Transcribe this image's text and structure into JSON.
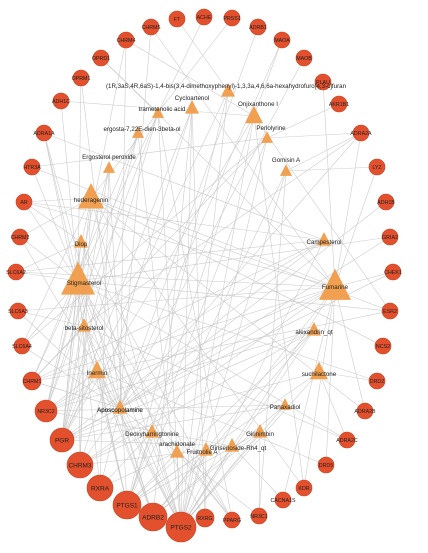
{
  "network": {
    "colors": {
      "target": "#e2502d",
      "target_stroke": "#c9401f",
      "compound": "#f0a050",
      "edge": "#c8c8c8",
      "label": "#222222"
    },
    "targets": [
      "FT",
      "ACHE",
      "PRSS1",
      "CHRM5",
      "CHRM4",
      "ADRB1",
      "OPRD1",
      "MAOA",
      "MAOB",
      "OPRM1",
      "PLAU",
      "ADH1C",
      "AKR1B1",
      "ADRA1A",
      "ADRA2A",
      "HTR3A",
      "LYZ",
      "AR",
      "ADH1B",
      "CHRM2",
      "GRIA2",
      "SLC6A2",
      "CHEK1",
      "SLC6A3",
      "ESR2",
      "SLC6A4",
      "NCS2",
      "CHRM1",
      "DRD2",
      "NR3C2",
      "ADRA2B",
      "PGR",
      "ADRA2C",
      "CHRM3",
      "DRD5",
      "RXRA",
      "KDR",
      "PTGS1",
      "ADRB2",
      "PTGS2",
      "RXRG",
      "PPARG",
      "NR3C1",
      "CACNA1S"
    ],
    "compounds": [
      "(1R,3aS,4R,6aS)-1,4-bis(3,4-dimethoxyphenyl)-1,3,3a,4,6,6a-hexahydrofuro[4,3-c]furan",
      "Cycloartenol",
      "trametenolic acid",
      "Onjixanthone I",
      "ergosta-7,22E-dien-3beta-ol",
      "Perlolyrine",
      "Ergosterol peroxide",
      "Gomisin A",
      "hederagenin",
      "Aposcopolamine",
      "Diop",
      "Campesterol",
      "Stigmasterol",
      "Fumarine",
      "beta-sitosterol",
      "alexandrin_qt",
      "Inermin",
      "suchilactone",
      "Aposcopolamine",
      "Panaxadiol",
      "Deoxyharringtonine",
      "Girinimbin",
      "arachidonate",
      "Fruitnolie A",
      "Ginsenoside-Rh4_qt"
    ],
    "edges": [
      [
        "Stigmasterol",
        "CHRM1"
      ],
      [
        "Stigmasterol",
        "CHRM3"
      ],
      [
        "Stigmasterol",
        "PGR"
      ],
      [
        "Stigmasterol",
        "NR3C2"
      ],
      [
        "Stigmasterol",
        "RXRA"
      ],
      [
        "Stigmasterol",
        "PTGS1"
      ],
      [
        "Stigmasterol",
        "PTGS2"
      ],
      [
        "Stigmasterol",
        "ADRB2"
      ],
      [
        "Stigmasterol",
        "AR"
      ],
      [
        "Stigmasterol",
        "SLC6A2"
      ],
      [
        "Stigmasterol",
        "SLC6A4"
      ],
      [
        "Stigmasterol",
        "ADRA2C"
      ],
      [
        "Stigmasterol",
        "PPARG"
      ],
      [
        "Stigmasterol",
        "ADRA1A"
      ],
      [
        "Stigmasterol",
        "CHRM2"
      ],
      [
        "Stigmasterol",
        "OPRM1"
      ],
      [
        "Stigmasterol",
        "ADH1C"
      ],
      [
        "Stigmasterol",
        "HTR3A"
      ],
      [
        "Stigmasterol",
        "GRIA2"
      ],
      [
        "Stigmasterol",
        "ESR2"
      ],
      [
        "Stigmasterol",
        "DRD2"
      ],
      [
        "Stigmasterol",
        "RXRG"
      ],
      [
        "Stigmasterol",
        "CHRM4"
      ],
      [
        "Stigmasterol",
        "ACHE"
      ],
      [
        "Fumarine",
        "CHRM1"
      ],
      [
        "Fumarine",
        "CHRM3"
      ],
      [
        "Fumarine",
        "PGR"
      ],
      [
        "Fumarine",
        "ADRB2"
      ],
      [
        "Fumarine",
        "PTGS2"
      ],
      [
        "Fumarine",
        "SLC6A3"
      ],
      [
        "Fumarine",
        "ADRA2A"
      ],
      [
        "Fumarine",
        "DRD5"
      ],
      [
        "Fumarine",
        "OPRD1"
      ],
      [
        "Fumarine",
        "CHEK1"
      ],
      [
        "Fumarine",
        "ADRA2B"
      ],
      [
        "Fumarine",
        "AR"
      ],
      [
        "Fumarine",
        "SLC6A2"
      ],
      [
        "Fumarine",
        "CHRM5"
      ],
      [
        "Fumarine",
        "NR3C2"
      ],
      [
        "Fumarine",
        "KDR"
      ],
      [
        "Fumarine",
        "PLAU"
      ],
      [
        "Fumarine",
        "HTR3A"
      ],
      [
        "Fumarine",
        "LYZ"
      ],
      [
        "Fumarine",
        "CACNA1S"
      ],
      [
        "Aposcopolamine",
        "CHRM1"
      ],
      [
        "Aposcopolamine",
        "CHRM2"
      ],
      [
        "Aposcopolamine",
        "CHRM3"
      ],
      [
        "Aposcopolamine",
        "CHRM4"
      ],
      [
        "Aposcopolamine",
        "CHRM5"
      ],
      [
        "Aposcopolamine",
        "ADRB1"
      ],
      [
        "Aposcopolamine",
        "ADRB2"
      ],
      [
        "Aposcopolamine",
        "ADRA1A"
      ],
      [
        "Aposcopolamine",
        "ADH1B"
      ],
      [
        "Aposcopolamine",
        "ADRA2A"
      ],
      [
        "Aposcopolamine",
        "MAOB"
      ],
      [
        "Aposcopolamine",
        "SLC6A4"
      ],
      [
        "Aposcopolamine",
        "SLC6A3"
      ],
      [
        "Aposcopolamine",
        "OPRM1"
      ],
      [
        "Aposcopolamine",
        "GRIA2"
      ],
      [
        "Aposcopolamine",
        "RXRA"
      ],
      [
        "Aposcopolamine",
        "PTGS2"
      ],
      [
        "Aposcopolamine",
        "NR3C1"
      ],
      [
        "Aposcopolamine",
        "CHEK1"
      ],
      [
        "Aposcopolamine",
        "PGR"
      ],
      [
        "Aposcopolamine",
        "MAOA"
      ],
      [
        "hederagenin",
        "PGR"
      ],
      [
        "hederagenin",
        "NR3C2"
      ],
      [
        "hederagenin",
        "PTGS2"
      ],
      [
        "hederagenin",
        "AR"
      ],
      [
        "hederagenin",
        "SLC6A4"
      ],
      [
        "hederagenin",
        "CHRM2"
      ],
      [
        "hederagenin",
        "ESR2"
      ],
      [
        "hederagenin",
        "KDR"
      ],
      [
        "hederagenin",
        "PRSS1"
      ],
      [
        "hederagenin",
        "CHRM3"
      ],
      [
        "hederagenin",
        "ADRA2B"
      ],
      [
        "hederagenin",
        "NCS2"
      ],
      [
        "beta-sitosterol",
        "PGR"
      ],
      [
        "beta-sitosterol",
        "PTGS1"
      ],
      [
        "beta-sitosterol",
        "PTGS2"
      ],
      [
        "beta-sitosterol",
        "CHRM3"
      ],
      [
        "beta-sitosterol",
        "ADRB2"
      ],
      [
        "beta-sitosterol",
        "ADRA2C"
      ],
      [
        "beta-sitosterol",
        "ADRA1A"
      ],
      [
        "beta-sitosterol",
        "CHRM1"
      ],
      [
        "beta-sitosterol",
        "SLC6A3"
      ],
      [
        "beta-sitosterol",
        "PPARG"
      ],
      [
        "beta-sitosterol",
        "ADRA2A"
      ],
      [
        "Inermin",
        "PTGS2"
      ],
      [
        "Inermin",
        "PTGS1"
      ],
      [
        "Inermin",
        "PGR"
      ],
      [
        "Inermin",
        "ESR2"
      ],
      [
        "Inermin",
        "NR3C2"
      ],
      [
        "Inermin",
        "ADRB2"
      ],
      [
        "Inermin",
        "CHRM1"
      ],
      [
        "Inermin",
        "DRD5"
      ],
      [
        "Campesterol",
        "PGR"
      ],
      [
        "Campesterol",
        "NR3C2"
      ],
      [
        "Campesterol",
        "PTGS2"
      ],
      [
        "Campesterol",
        "AR"
      ],
      [
        "Campesterol",
        "CHRM1"
      ],
      [
        "Campesterol",
        "SLC6A2"
      ],
      [
        "Campesterol",
        "ADRA1A"
      ],
      [
        "Diop",
        "PGR"
      ],
      [
        "Diop",
        "AR"
      ],
      [
        "Diop",
        "SLC6A2"
      ],
      [
        "Diop",
        "PTGS2"
      ],
      [
        "Diop",
        "PPARG"
      ],
      [
        "Onjixanthone I",
        "PTGS2"
      ],
      [
        "Onjixanthone I",
        "PTGS1"
      ],
      [
        "Onjixanthone I",
        "PGR"
      ],
      [
        "Onjixanthone I",
        "KDR"
      ],
      [
        "Onjixanthone I",
        "ADH1C"
      ],
      [
        "Onjixanthone I",
        "CHRM4"
      ],
      [
        "Onjixanthone I",
        "ESR2"
      ],
      [
        "Onjixanthone I",
        "MAOA"
      ],
      [
        "Perlolyrine",
        "PTGS2"
      ],
      [
        "Perlolyrine",
        "PTGS1"
      ],
      [
        "Perlolyrine",
        "AKR1B1"
      ],
      [
        "Perlolyrine",
        "ADRA2A"
      ],
      [
        "Perlolyrine",
        "CHRM1"
      ],
      [
        "Perlolyrine",
        "HTR3A"
      ],
      [
        "Perlolyrine",
        "SLC6A4"
      ],
      [
        "Gomisin A",
        "PTGS2"
      ],
      [
        "Gomisin A",
        "PTGS1"
      ],
      [
        "Gomisin A",
        "NR3C1"
      ],
      [
        "Gomisin A",
        "ADRA2A"
      ],
      [
        "Gomisin A",
        "LYZ"
      ],
      [
        "Cycloartenol",
        "PGR"
      ],
      [
        "Cycloartenol",
        "PTGS2"
      ],
      [
        "Cycloartenol",
        "RXRG"
      ],
      [
        "Cycloartenol",
        "ADRB2"
      ],
      [
        "Cycloartenol",
        "CHRM3"
      ],
      [
        "trametenolic acid",
        "PGR"
      ],
      [
        "trametenolic acid",
        "NR3C2"
      ],
      [
        "trametenolic acid",
        "PTGS2"
      ],
      [
        "trametenolic acid",
        "PPARG"
      ],
      [
        "trametenolic acid",
        "OPRD1"
      ],
      [
        "ergosta-7,22E-dien-3beta-ol",
        "PGR"
      ],
      [
        "ergosta-7,22E-dien-3beta-ol",
        "NR3C2"
      ],
      [
        "ergosta-7,22E-dien-3beta-ol",
        "PTGS2"
      ],
      [
        "ergosta-7,22E-dien-3beta-ol",
        "CHRM1"
      ],
      [
        "Ergosterol peroxide",
        "PGR"
      ],
      [
        "Ergosterol peroxide",
        "NR3C2"
      ],
      [
        "Ergosterol peroxide",
        "RXRA"
      ],
      [
        "Ergosterol peroxide",
        "PTGS1"
      ],
      [
        "(1R,3aS,4R,6aS)-1,4-bis(3,4-dimethoxyphenyl)-1,3,3a,4,6,6a-hexahydrofuro[4,3-c]furan",
        "PTGS2"
      ],
      [
        "(1R,3aS,4R,6aS)-1,4-bis(3,4-dimethoxyphenyl)-1,3,3a,4,6,6a-hexahydrofuro[4,3-c]furan",
        "PTGS1"
      ],
      [
        "(1R,3aS,4R,6aS)-1,4-bis(3,4-dimethoxyphenyl)-1,3,3a,4,6,6a-hexahydrofuro[4,3-c]furan",
        "PGR"
      ],
      [
        "(1R,3aS,4R,6aS)-1,4-bis(3,4-dimethoxyphenyl)-1,3,3a,4,6,6a-hexahydrofuro[4,3-c]furan",
        "FT"
      ],
      [
        "alexandrin_qt",
        "PGR"
      ],
      [
        "alexandrin_qt",
        "NR3C2"
      ],
      [
        "alexandrin_qt",
        "PTGS2"
      ],
      [
        "alexandrin_qt",
        "PTGS1"
      ],
      [
        "alexandrin_qt",
        "ADRB2"
      ],
      [
        "alexandrin_qt",
        "CHRM3"
      ],
      [
        "suchilactone",
        "PTGS2"
      ],
      [
        "suchilactone",
        "PTGS1"
      ],
      [
        "suchilactone",
        "PGR"
      ],
      [
        "suchilactone",
        "ADRA2C"
      ],
      [
        "suchilactone",
        "DRD2"
      ],
      [
        "Aposcopolamine",
        "CHRM1"
      ],
      [
        "Panaxadiol",
        "PGR"
      ],
      [
        "Panaxadiol",
        "NR3C2"
      ],
      [
        "Panaxadiol",
        "PTGS2"
      ],
      [
        "Panaxadiol",
        "ADRB2"
      ],
      [
        "Deoxyharringtonine",
        "PTGS2"
      ],
      [
        "Deoxyharringtonine",
        "PTGS1"
      ],
      [
        "Deoxyharringtonine",
        "CHRM3"
      ],
      [
        "Deoxyharringtonine",
        "RXRA"
      ],
      [
        "Girinimbin",
        "PTGS2"
      ],
      [
        "Girinimbin",
        "PTGS1"
      ],
      [
        "Girinimbin",
        "ADRB2"
      ],
      [
        "Girinimbin",
        "NR3C1"
      ],
      [
        "arachidonate",
        "PTGS2"
      ],
      [
        "arachidonate",
        "PTGS1"
      ],
      [
        "arachidonate",
        "PPARG"
      ],
      [
        "arachidonate",
        "RXRA"
      ],
      [
        "Fruitnolie A",
        "PTGS2"
      ],
      [
        "Fruitnolie A",
        "PTGS1"
      ],
      [
        "Fruitnolie A",
        "ADRB2"
      ],
      [
        "Fruitnolie A",
        "CHRM3"
      ],
      [
        "Fruitnolie A",
        "RXRG"
      ],
      [
        "Ginsenoside-Rh4_qt",
        "PGR"
      ],
      [
        "Ginsenoside-Rh4_qt",
        "PTGS2"
      ],
      [
        "Ginsenoside-Rh4_qt",
        "NR3C2"
      ],
      [
        "Ginsenoside-Rh4_qt",
        "CACNA1S"
      ]
    ]
  }
}
